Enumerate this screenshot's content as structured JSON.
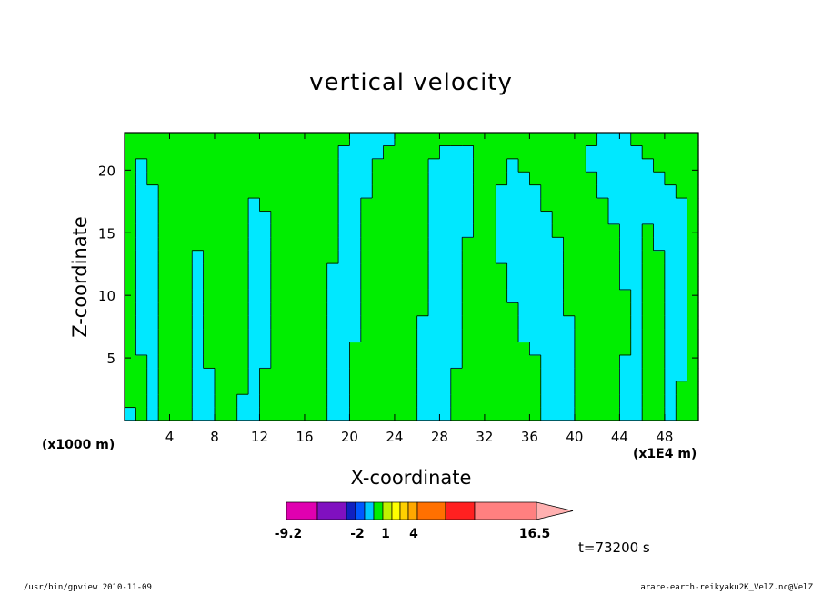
{
  "chart_data": {
    "type": "heatmap",
    "title": "vertical velocity",
    "xlabel": "X-coordinate",
    "ylabel": "Z-coordinate",
    "x_unit_label": "(x1000 m)",
    "x_scale_label": "(x1E4 m)",
    "x_ticks": [
      4,
      8,
      12,
      16,
      20,
      24,
      28,
      32,
      36,
      40,
      44,
      48
    ],
    "y_ticks": [
      5,
      10,
      15,
      20
    ],
    "xlim": [
      0,
      51
    ],
    "ylim": [
      0,
      23
    ],
    "contour_colors": {
      "negative": "#00e8ff",
      "positive": "#00ee00",
      "line": "#000000"
    },
    "colorbar": {
      "colors": [
        "#e000b0",
        "#8010c0",
        "#1020c0",
        "#0058ff",
        "#00c8ff",
        "#00ee00",
        "#c0f000",
        "#ffff00",
        "#ffd000",
        "#ffa800",
        "#ff7000",
        "#ff2020",
        "#ff8080",
        "#ffb0b0"
      ],
      "tick_labels": [
        "-9.2",
        "-2",
        "1",
        "4",
        "16.5"
      ]
    },
    "time_label": "t=73200 s",
    "field": [
      [
        0,
        1,
        0,
        1,
        1,
        1,
        0,
        0,
        1,
        1,
        0,
        0,
        1,
        1,
        1,
        1,
        1,
        1,
        0,
        0,
        1,
        1,
        1,
        1,
        1,
        1,
        0,
        0,
        0,
        1,
        1,
        1,
        1,
        1,
        1,
        1,
        1,
        0,
        0,
        0,
        1,
        1,
        1,
        1,
        0,
        0,
        1,
        1,
        0,
        1,
        1
      ],
      [
        1,
        1,
        0,
        1,
        1,
        1,
        0,
        0,
        1,
        1,
        0,
        0,
        1,
        1,
        1,
        1,
        1,
        1,
        0,
        0,
        1,
        1,
        1,
        1,
        1,
        1,
        0,
        0,
        0,
        1,
        1,
        1,
        1,
        1,
        1,
        1,
        1,
        0,
        0,
        0,
        1,
        1,
        1,
        1,
        0,
        0,
        1,
        1,
        0,
        1,
        1
      ],
      [
        1,
        1,
        0,
        1,
        1,
        1,
        0,
        0,
        1,
        1,
        1,
        0,
        1,
        1,
        1,
        1,
        1,
        1,
        0,
        0,
        1,
        1,
        1,
        1,
        1,
        1,
        0,
        0,
        0,
        1,
        1,
        1,
        1,
        1,
        1,
        1,
        1,
        0,
        0,
        0,
        1,
        1,
        1,
        1,
        0,
        0,
        1,
        1,
        0,
        1,
        1
      ],
      [
        1,
        1,
        0,
        1,
        1,
        1,
        0,
        0,
        1,
        1,
        1,
        0,
        1,
        1,
        1,
        1,
        1,
        1,
        0,
        0,
        1,
        1,
        1,
        1,
        1,
        1,
        0,
        0,
        0,
        1,
        1,
        1,
        1,
        1,
        1,
        1,
        1,
        0,
        0,
        0,
        1,
        1,
        1,
        1,
        0,
        0,
        1,
        1,
        0,
        0,
        1
      ],
      [
        1,
        1,
        0,
        1,
        1,
        1,
        0,
        1,
        1,
        1,
        1,
        0,
        0,
        1,
        1,
        1,
        1,
        1,
        0,
        0,
        1,
        1,
        1,
        1,
        1,
        1,
        0,
        0,
        0,
        0,
        1,
        1,
        1,
        1,
        1,
        1,
        1,
        0,
        0,
        0,
        1,
        1,
        1,
        1,
        0,
        0,
        1,
        1,
        0,
        0,
        1
      ],
      [
        1,
        0,
        0,
        1,
        1,
        1,
        0,
        1,
        1,
        1,
        1,
        0,
        0,
        1,
        1,
        1,
        1,
        1,
        0,
        0,
        1,
        1,
        1,
        1,
        1,
        1,
        0,
        0,
        0,
        0,
        1,
        1,
        1,
        1,
        1,
        1,
        0,
        0,
        0,
        0,
        1,
        1,
        1,
        1,
        1,
        0,
        1,
        1,
        0,
        0,
        1
      ],
      [
        1,
        0,
        0,
        1,
        1,
        1,
        0,
        1,
        1,
        1,
        1,
        0,
        0,
        1,
        1,
        1,
        1,
        1,
        0,
        0,
        0,
        1,
        1,
        1,
        1,
        1,
        0,
        0,
        0,
        0,
        1,
        1,
        1,
        1,
        1,
        0,
        0,
        0,
        0,
        0,
        1,
        1,
        1,
        1,
        1,
        0,
        1,
        1,
        0,
        0,
        1
      ],
      [
        1,
        0,
        0,
        1,
        1,
        1,
        0,
        1,
        1,
        1,
        1,
        0,
        0,
        1,
        1,
        1,
        1,
        1,
        0,
        0,
        0,
        1,
        1,
        1,
        1,
        1,
        0,
        0,
        0,
        0,
        1,
        1,
        1,
        1,
        1,
        0,
        0,
        0,
        0,
        0,
        1,
        1,
        1,
        1,
        1,
        0,
        1,
        1,
        0,
        0,
        1
      ],
      [
        1,
        0,
        0,
        1,
        1,
        1,
        0,
        1,
        1,
        1,
        1,
        0,
        0,
        1,
        1,
        1,
        1,
        1,
        0,
        0,
        0,
        1,
        1,
        1,
        1,
        1,
        1,
        0,
        0,
        0,
        1,
        1,
        1,
        1,
        1,
        0,
        0,
        0,
        0,
        1,
        1,
        1,
        1,
        1,
        1,
        0,
        1,
        1,
        0,
        0,
        1
      ],
      [
        1,
        0,
        0,
        1,
        1,
        1,
        0,
        1,
        1,
        1,
        1,
        0,
        0,
        1,
        1,
        1,
        1,
        1,
        0,
        0,
        0,
        1,
        1,
        1,
        1,
        1,
        1,
        0,
        0,
        0,
        1,
        1,
        1,
        1,
        0,
        0,
        0,
        0,
        0,
        1,
        1,
        1,
        1,
        1,
        1,
        0,
        1,
        1,
        0,
        0,
        1
      ],
      [
        1,
        0,
        0,
        1,
        1,
        1,
        0,
        1,
        1,
        1,
        1,
        0,
        0,
        1,
        1,
        1,
        1,
        1,
        0,
        0,
        0,
        1,
        1,
        1,
        1,
        1,
        1,
        0,
        0,
        0,
        1,
        1,
        1,
        1,
        0,
        0,
        0,
        0,
        0,
        1,
        1,
        1,
        1,
        1,
        0,
        0,
        1,
        1,
        0,
        0,
        1
      ],
      [
        1,
        0,
        0,
        1,
        1,
        1,
        0,
        1,
        1,
        1,
        1,
        0,
        0,
        1,
        1,
        1,
        1,
        1,
        0,
        0,
        0,
        1,
        1,
        1,
        1,
        1,
        1,
        0,
        0,
        0,
        1,
        1,
        1,
        1,
        0,
        0,
        0,
        0,
        0,
        1,
        1,
        1,
        1,
        1,
        0,
        0,
        1,
        1,
        0,
        0,
        1
      ],
      [
        1,
        0,
        0,
        1,
        1,
        1,
        0,
        1,
        1,
        1,
        1,
        0,
        0,
        1,
        1,
        1,
        1,
        1,
        1,
        0,
        0,
        1,
        1,
        1,
        1,
        1,
        1,
        0,
        0,
        0,
        1,
        1,
        1,
        0,
        0,
        0,
        0,
        0,
        0,
        1,
        1,
        1,
        1,
        1,
        0,
        0,
        1,
        1,
        0,
        0,
        1
      ],
      [
        1,
        0,
        0,
        1,
        1,
        1,
        1,
        1,
        1,
        1,
        1,
        0,
        0,
        1,
        1,
        1,
        1,
        1,
        1,
        0,
        0,
        1,
        1,
        1,
        1,
        1,
        1,
        0,
        0,
        0,
        1,
        1,
        1,
        0,
        0,
        0,
        0,
        0,
        0,
        1,
        1,
        1,
        1,
        1,
        0,
        0,
        1,
        0,
        0,
        0,
        1
      ],
      [
        1,
        0,
        0,
        1,
        1,
        1,
        1,
        1,
        1,
        1,
        1,
        0,
        0,
        1,
        1,
        1,
        1,
        1,
        1,
        0,
        0,
        1,
        1,
        1,
        1,
        1,
        1,
        0,
        0,
        0,
        0,
        1,
        1,
        0,
        0,
        0,
        0,
        0,
        1,
        1,
        1,
        1,
        1,
        1,
        0,
        0,
        1,
        0,
        0,
        0,
        1
      ],
      [
        1,
        0,
        0,
        1,
        1,
        1,
        1,
        1,
        1,
        1,
        1,
        0,
        0,
        1,
        1,
        1,
        1,
        1,
        1,
        0,
        0,
        1,
        1,
        1,
        1,
        1,
        1,
        0,
        0,
        0,
        0,
        1,
        1,
        0,
        0,
        0,
        0,
        0,
        1,
        1,
        1,
        1,
        1,
        0,
        0,
        0,
        0,
        0,
        0,
        0,
        1
      ],
      [
        1,
        0,
        0,
        1,
        1,
        1,
        1,
        1,
        1,
        1,
        1,
        0,
        1,
        1,
        1,
        1,
        1,
        1,
        1,
        0,
        0,
        1,
        1,
        1,
        1,
        1,
        1,
        0,
        0,
        0,
        0,
        1,
        1,
        0,
        0,
        0,
        0,
        1,
        1,
        1,
        1,
        1,
        1,
        0,
        0,
        0,
        0,
        0,
        0,
        0,
        1
      ],
      [
        1,
        0,
        0,
        1,
        1,
        1,
        1,
        1,
        1,
        1,
        1,
        1,
        1,
        1,
        1,
        1,
        1,
        1,
        1,
        0,
        0,
        0,
        1,
        1,
        1,
        1,
        1,
        0,
        0,
        0,
        0,
        1,
        1,
        0,
        0,
        0,
        0,
        1,
        1,
        1,
        1,
        1,
        0,
        0,
        0,
        0,
        0,
        0,
        0,
        1,
        1
      ],
      [
        1,
        0,
        1,
        1,
        1,
        1,
        1,
        1,
        1,
        1,
        1,
        1,
        1,
        1,
        1,
        1,
        1,
        1,
        1,
        0,
        0,
        0,
        1,
        1,
        1,
        1,
        1,
        0,
        0,
        0,
        0,
        1,
        1,
        1,
        0,
        0,
        1,
        1,
        1,
        1,
        1,
        1,
        0,
        0,
        0,
        0,
        0,
        0,
        1,
        1,
        1
      ],
      [
        1,
        0,
        1,
        1,
        1,
        1,
        1,
        1,
        1,
        1,
        1,
        1,
        1,
        1,
        1,
        1,
        1,
        1,
        1,
        0,
        0,
        0,
        1,
        1,
        1,
        1,
        1,
        0,
        0,
        0,
        0,
        1,
        1,
        1,
        0,
        1,
        1,
        1,
        1,
        1,
        1,
        0,
        0,
        0,
        0,
        0,
        0,
        1,
        1,
        1,
        1
      ],
      [
        1,
        1,
        1,
        1,
        1,
        1,
        1,
        1,
        1,
        1,
        1,
        1,
        1,
        1,
        1,
        1,
        1,
        1,
        1,
        0,
        0,
        0,
        0,
        1,
        1,
        1,
        1,
        1,
        0,
        0,
        0,
        1,
        1,
        1,
        1,
        1,
        1,
        1,
        1,
        1,
        1,
        0,
        0,
        0,
        0,
        0,
        1,
        1,
        1,
        1,
        1
      ],
      [
        1,
        1,
        1,
        1,
        1,
        1,
        1,
        1,
        1,
        1,
        1,
        1,
        1,
        1,
        1,
        1,
        1,
        1,
        1,
        1,
        0,
        0,
        0,
        0,
        1,
        1,
        1,
        1,
        1,
        1,
        1,
        1,
        1,
        1,
        1,
        1,
        1,
        1,
        1,
        1,
        1,
        1,
        0,
        0,
        0,
        1,
        1,
        1,
        1,
        1,
        1
      ]
    ]
  },
  "footer": {
    "left": "/usr/bin/gpview   2010-11-09",
    "right": "arare-earth-reikyaku2K_VelZ.nc@VelZ"
  }
}
